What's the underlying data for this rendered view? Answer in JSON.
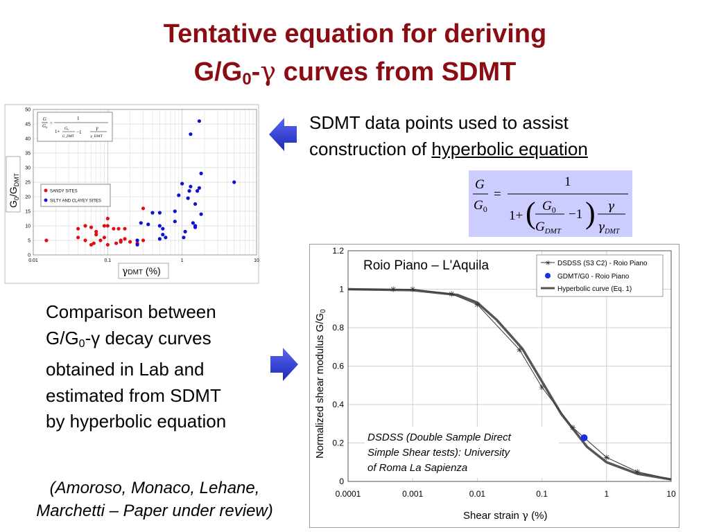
{
  "slide": {
    "title_line1": "Tentative equation for deriving",
    "title_line2_a": "G/G",
    "title_line2_sub": "0",
    "title_line2_dash": "-",
    "title_line2_gamma": "γ",
    "title_line2_b": " curves from SDMT",
    "desc1_line1": "SDMT data points used to assist",
    "desc1_line2": "construction of ",
    "desc1_link": "hyperbolic equation",
    "desc2_l1": "Comparison between",
    "desc2_l2_a": "G/G",
    "desc2_l2_sub": "0",
    "desc2_l2_b": "-γ decay curves",
    "desc2_l3": "obtained in Lab and",
    "desc2_l4": "estimated from SDMT",
    "desc2_l5": "by hyperbolic equation",
    "ref_l1": "(Amoroso, Monaco, Lehane,",
    "ref_l2": "Marchetti – Paper under review)",
    "arrow_color": "#2b38d6"
  },
  "chart_data": [
    {
      "type": "scatter",
      "xscale": "log",
      "xlim": [
        0.01,
        10
      ],
      "ylim": [
        0,
        50
      ],
      "xticks": [
        "0.01",
        "0.1",
        "1",
        "10"
      ],
      "yticks": [
        "0",
        "5",
        "10",
        "15",
        "20",
        "25",
        "30",
        "35",
        "40",
        "45",
        "50"
      ],
      "xlabel": "γDMT (%)",
      "ylabel": "G0/GDMT",
      "legend_position": "left-middle",
      "series": [
        {
          "name": "SANDY SITES",
          "color": "#e01010",
          "points": [
            [
              0.015,
              5
            ],
            [
              0.04,
              9
            ],
            [
              0.04,
              6
            ],
            [
              0.05,
              10
            ],
            [
              0.05,
              5
            ],
            [
              0.06,
              9.5
            ],
            [
              0.06,
              3.5
            ],
            [
              0.065,
              4
            ],
            [
              0.07,
              8
            ],
            [
              0.07,
              7
            ],
            [
              0.08,
              5
            ],
            [
              0.09,
              10
            ],
            [
              0.09,
              6
            ],
            [
              0.1,
              12.5
            ],
            [
              0.1,
              10
            ],
            [
              0.1,
              3.5
            ],
            [
              0.12,
              9
            ],
            [
              0.13,
              4
            ],
            [
              0.14,
              9
            ],
            [
              0.15,
              5
            ],
            [
              0.15,
              4.5
            ],
            [
              0.17,
              5.5
            ],
            [
              0.17,
              9
            ],
            [
              0.2,
              4.5
            ],
            [
              0.25,
              4
            ],
            [
              0.3,
              16
            ],
            [
              0.3,
              5
            ]
          ]
        },
        {
          "name": "SILTY AND CLAYEY SITES",
          "color": "#1010d0",
          "points": [
            [
              0.25,
              3.5
            ],
            [
              0.25,
              5
            ],
            [
              0.28,
              11
            ],
            [
              0.35,
              10.5
            ],
            [
              0.4,
              14.5
            ],
            [
              0.5,
              14.5
            ],
            [
              0.5,
              10
            ],
            [
              0.55,
              9
            ],
            [
              0.55,
              7
            ],
            [
              0.5,
              5.5
            ],
            [
              0.6,
              6
            ],
            [
              0.8,
              11.5
            ],
            [
              0.8,
              15
            ],
            [
              0.9,
              20.5
            ],
            [
              1.0,
              24.5
            ],
            [
              1.05,
              6
            ],
            [
              1.1,
              8
            ],
            [
              1.2,
              19.5
            ],
            [
              1.25,
              22
            ],
            [
              1.3,
              23.5
            ],
            [
              1.3,
              41.5
            ],
            [
              1.4,
              11
            ],
            [
              1.5,
              9.5
            ],
            [
              1.5,
              10
            ],
            [
              1.5,
              17.5
            ],
            [
              1.6,
              22
            ],
            [
              1.7,
              46
            ],
            [
              1.7,
              23
            ],
            [
              1.8,
              28
            ],
            [
              1.8,
              14
            ],
            [
              5,
              25
            ]
          ]
        }
      ]
    },
    {
      "type": "line",
      "xscale": "log",
      "xlim": [
        0.0001,
        10
      ],
      "ylim": [
        0,
        1.2
      ],
      "xticks": [
        "0.0001",
        "0.001",
        "0.01",
        "0.1",
        "1",
        "10"
      ],
      "yticks": [
        "0",
        "0.2",
        "0.4",
        "0.6",
        "0.8",
        "1",
        "1.2"
      ],
      "xlabel": "Shear strain γ (%)",
      "ylabel": "Normalized shear modulus G/G0",
      "site_label": "Roio Piano – L'Aquila",
      "note": "DSDSS (Double Sample Direct Simple Shear tests): University of Roma La Sapienza",
      "legend_position": "top-right",
      "series": [
        {
          "name": "DSDSS (S3 C2) - Roio Piano",
          "color": "#333333",
          "points": [
            [
              0.0001,
              1
            ],
            [
              0.0005,
              1.0
            ],
            [
              0.001,
              1.0
            ],
            [
              0.004,
              0.975
            ],
            [
              0.01,
              0.92
            ],
            [
              0.045,
              0.685
            ],
            [
              0.1,
              0.49
            ],
            [
              0.3,
              0.28
            ],
            [
              1,
              0.125
            ],
            [
              3,
              0.05
            ],
            [
              10,
              0.012
            ]
          ]
        },
        {
          "name": "GDMT/G0 - Roio Piano",
          "color": "#1a2fe0",
          "points": [
            [
              0.45,
              0.227
            ]
          ]
        },
        {
          "name": "Hyperbolic curve (Eq. 1)",
          "color": "#555555",
          "points": [
            [
              0.0001,
              1
            ],
            [
              0.001,
              0.995
            ],
            [
              0.005,
              0.97
            ],
            [
              0.01,
              0.93
            ],
            [
              0.02,
              0.84
            ],
            [
              0.05,
              0.69
            ],
            [
              0.1,
              0.52
            ],
            [
              0.2,
              0.35
            ],
            [
              0.5,
              0.18
            ],
            [
              1,
              0.1
            ],
            [
              3,
              0.04
            ],
            [
              10,
              0.01
            ]
          ]
        }
      ]
    }
  ]
}
